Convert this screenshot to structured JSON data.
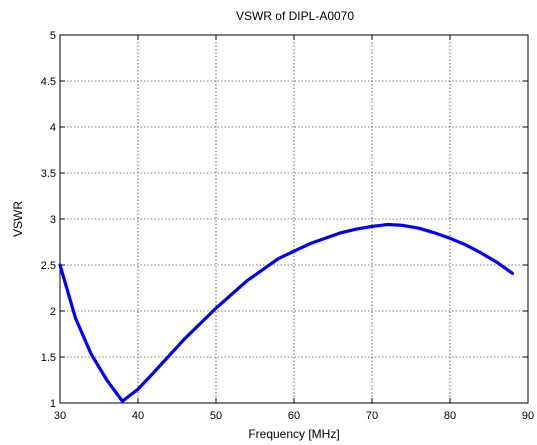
{
  "chart_data": {
    "type": "line",
    "title": "VSWR of DIPL-A0070",
    "xlabel": "Frequency [MHz]",
    "ylabel": "VSWR",
    "xlim": [
      30,
      90
    ],
    "ylim": [
      1,
      5
    ],
    "x_ticks": [
      30,
      40,
      50,
      60,
      70,
      80,
      90
    ],
    "y_ticks": [
      1,
      1.5,
      2,
      2.5,
      3,
      3.5,
      4,
      4.5,
      5
    ],
    "grid": true,
    "legend": "none",
    "series": [
      {
        "color": "#0000ff",
        "x": [
          30,
          32,
          34,
          36,
          38,
          40,
          42,
          46,
          50,
          54,
          58,
          62,
          66,
          68,
          70,
          72,
          74,
          76,
          78,
          80,
          82,
          84,
          86,
          88
        ],
        "y": [
          2.5,
          1.92,
          1.53,
          1.25,
          1.02,
          1.15,
          1.33,
          1.7,
          2.03,
          2.33,
          2.57,
          2.73,
          2.85,
          2.89,
          2.92,
          2.94,
          2.93,
          2.9,
          2.85,
          2.79,
          2.72,
          2.63,
          2.53,
          2.41
        ]
      }
    ]
  }
}
